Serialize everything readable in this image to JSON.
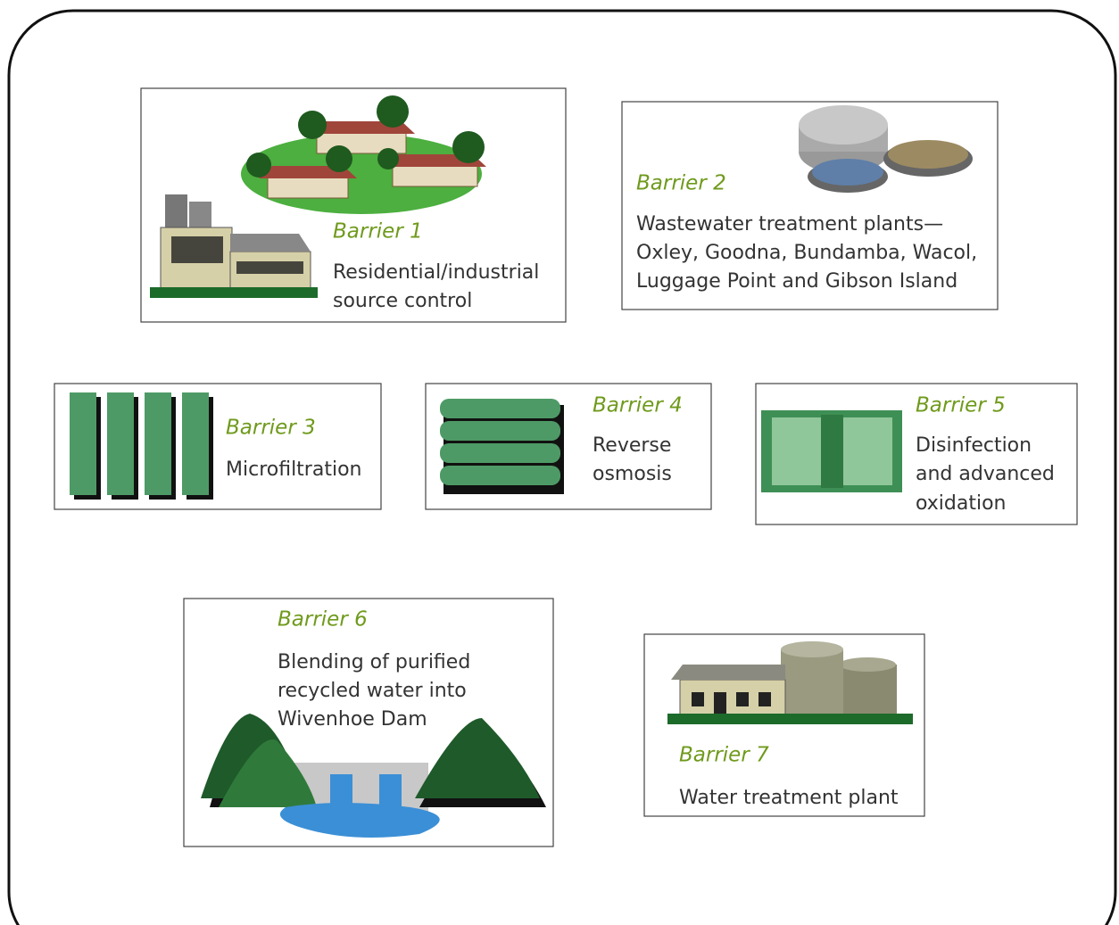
{
  "barriers": [
    {
      "title": "Barrier 1",
      "lines": [
        "Residential/industrial",
        "source control"
      ]
    },
    {
      "title": "Barrier 2",
      "lines": [
        "Wastewater treatment plants—",
        "Oxley, Goodna, Bundamba, Wacol,",
        "Luggage Point and Gibson Island"
      ]
    },
    {
      "title": "Barrier 3",
      "lines": [
        "Microfiltration"
      ]
    },
    {
      "title": "Barrier 4",
      "lines": [
        "Reverse",
        "osmosis"
      ]
    },
    {
      "title": "Barrier 5",
      "lines": [
        "Disinfection",
        "and advanced",
        "oxidation"
      ]
    },
    {
      "title": "Barrier 6",
      "lines": [
        "Blending of purified",
        "recycled water into",
        "Wivenhoe Dam"
      ]
    },
    {
      "title": "Barrier 7",
      "lines": [
        "Water treatment plant"
      ]
    }
  ]
}
